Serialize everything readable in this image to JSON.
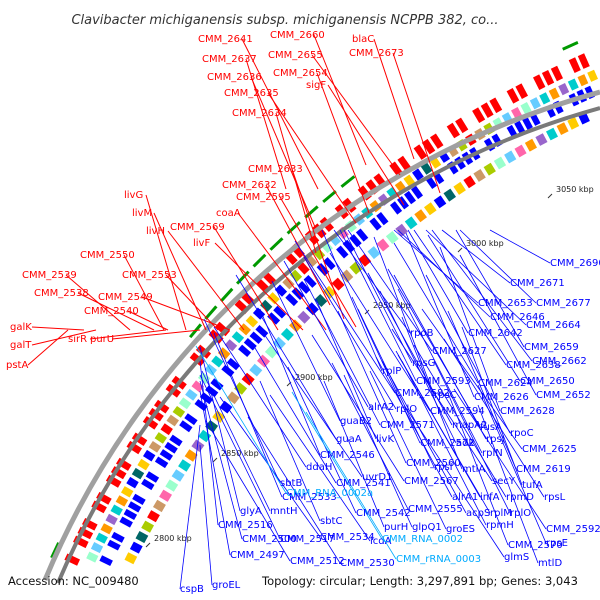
{
  "title": "Clavibacter michiganensis subsp. michiganensis NCPPB 382, co...",
  "footer": {
    "accession": "Accession: NC_009480",
    "summary": "Topology: circular; Length: 3,297,891 bp; Genes: 3,043"
  },
  "colors": {
    "forward": "#ff0000",
    "reverse": "#0000ff",
    "rna": "#00aaff",
    "backbone": "#888888"
  },
  "kbp_marks": [
    "2800 kbp",
    "2850 kbp",
    "2900 kbp",
    "2950 kbp",
    "3000 kbp",
    "3050 kbp"
  ],
  "forward_labels": [
    "blaC",
    "CMM_2660",
    "CMM_2673",
    "CMM_2641",
    "CMM_2655",
    "CMM_2637",
    "CMM_2654",
    "CMM_2636",
    "sigF",
    "CMM_2635",
    "CMM_2634",
    "CMM_2633",
    "CMM_2632",
    "CMM_2595",
    "coaA",
    "livG",
    "livM",
    "CMM_2569",
    "livH",
    "livF",
    "CMM_2550",
    "CMM_2553",
    "CMM_2539",
    "CMM_2538",
    "CMM_2549",
    "CMM_2540",
    "galK",
    "galT",
    "sirR",
    "purU",
    "pstA"
  ],
  "reverse_labels": [
    "CMM_2690",
    "CMM_2671",
    "CMM_2677",
    "CMM_2653",
    "CMM_2646",
    "CMM_2664",
    "CMM_2642",
    "CMM_2659",
    "rpoB",
    "CMM_2627",
    "CMM_2638",
    "CMM_2662",
    "rplP",
    "rpsG",
    "CMM_2593",
    "CMM_2624",
    "CMM_2650",
    "CMM_2582",
    "rpsC",
    "CMM_2626",
    "CMM_2652",
    "alrA2",
    "rplO",
    "CMM_2594",
    "CMM_2628",
    "guaB2",
    "CMM_2571",
    "mapA2",
    "fusA",
    "guaA",
    "livK",
    "CMM_2572",
    "adk",
    "rpoC",
    "rpsJ",
    "CMM_2625",
    "CMM_2546",
    "CMM_2560",
    "rpsI",
    "rplN",
    "ddaH",
    "uvrD1",
    "mtlA",
    "CMM_2619",
    "sbtB",
    "CMM_2541",
    "CMM_2567",
    "secY",
    "tufA",
    "CMM_2533",
    "alrA1",
    "infA",
    "rpmD",
    "rpsL",
    "glyA",
    "mntH",
    "CMM_2555",
    "acpS",
    "rplM",
    "CMM_2516",
    "sbtC",
    "CMM_2542",
    "rplO",
    "CMM_2500",
    "CMM_2517",
    "CMM_2534",
    "purH",
    "glpQ1",
    "groES",
    "rpmH",
    "CMM_2592",
    "icdA",
    "CMM_2570",
    "rpsE",
    "CMM_2497",
    "CMM_2512",
    "CMM_2530",
    "glmS",
    "mtlD",
    "cspB",
    "groEL"
  ],
  "rna_labels": [
    "CMM_RNA_0002a",
    "CMM_RNA_0002",
    "CMM_rRNA_0003"
  ]
}
